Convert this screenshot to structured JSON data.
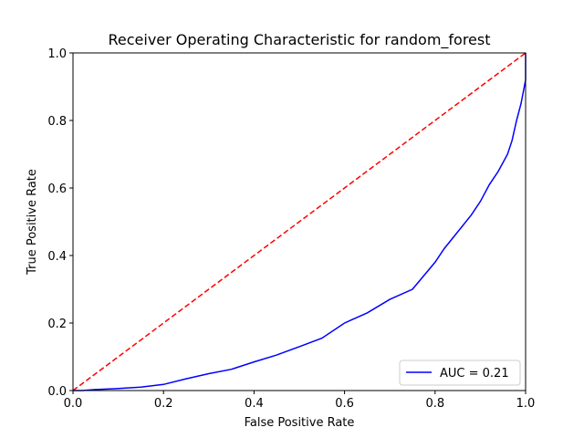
{
  "chart_data": {
    "type": "line",
    "title": "Receiver Operating Characteristic for random_forest",
    "xlabel": "False Positive Rate",
    "ylabel": "True Positive Rate",
    "xlim": [
      0.0,
      1.0
    ],
    "ylim": [
      0.0,
      1.0
    ],
    "xticks": [
      "0.0",
      "0.2",
      "0.4",
      "0.6",
      "0.8",
      "1.0"
    ],
    "yticks": [
      "0.0",
      "0.2",
      "0.4",
      "0.6",
      "0.8",
      "1.0"
    ],
    "grid": false,
    "legend_position": "lower right",
    "series": [
      {
        "name": "AUC = 0.21",
        "color": "#0000ff",
        "style": "solid",
        "x": [
          0.0,
          0.02,
          0.05,
          0.1,
          0.15,
          0.2,
          0.25,
          0.3,
          0.35,
          0.4,
          0.45,
          0.5,
          0.55,
          0.6,
          0.65,
          0.7,
          0.75,
          0.8,
          0.82,
          0.85,
          0.88,
          0.9,
          0.92,
          0.94,
          0.96,
          0.97,
          0.98,
          0.99,
          1.0,
          1.0
        ],
        "y": [
          0.0,
          0.0,
          0.003,
          0.006,
          0.01,
          0.018,
          0.035,
          0.05,
          0.063,
          0.085,
          0.105,
          0.13,
          0.155,
          0.2,
          0.23,
          0.27,
          0.3,
          0.38,
          0.42,
          0.47,
          0.52,
          0.56,
          0.61,
          0.65,
          0.7,
          0.74,
          0.8,
          0.85,
          0.92,
          1.0
        ]
      },
      {
        "name": "",
        "color": "#ff0000",
        "style": "dashed",
        "x": [
          0.0,
          1.0
        ],
        "y": [
          0.0,
          1.0
        ]
      }
    ]
  }
}
